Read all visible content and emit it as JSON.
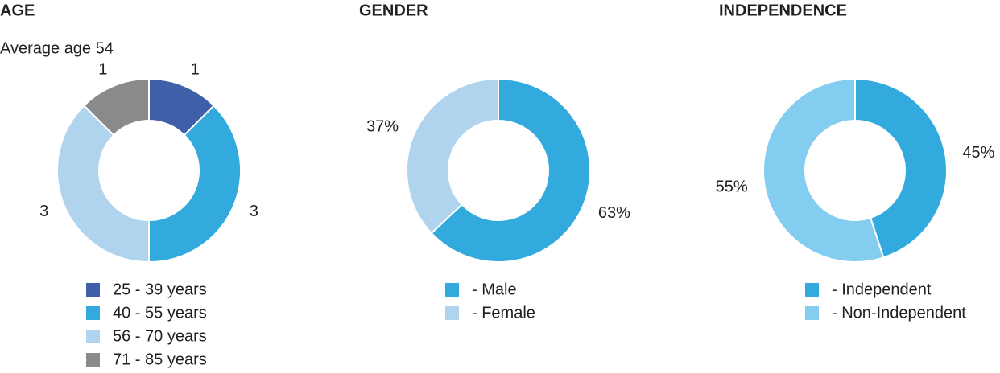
{
  "chart_data": [
    {
      "type": "pie",
      "title": "AGE",
      "subtitle": "Average age 54",
      "categories": [
        "25 - 39 years",
        "40 - 55 years",
        "56 - 70 years",
        "71 - 85 years"
      ],
      "values": [
        1,
        3,
        3,
        1
      ],
      "colors": [
        "#3f5fa8",
        "#33aadd",
        "#b0d4ee",
        "#8a8a8a"
      ]
    },
    {
      "type": "pie",
      "title": "GENDER",
      "categories": [
        "-  Male",
        "-  Female"
      ],
      "values": [
        63,
        37
      ],
      "value_labels": [
        "63%",
        "37%"
      ],
      "colors": [
        "#33aadd",
        "#b0d4ee"
      ]
    },
    {
      "type": "pie",
      "title": "INDEPENDENCE",
      "categories": [
        "-  Independent",
        "-  Non-Independent"
      ],
      "values": [
        45,
        55
      ],
      "value_labels": [
        "45%",
        "55%"
      ],
      "colors": [
        "#33aadd",
        "#82cdf0"
      ]
    }
  ]
}
